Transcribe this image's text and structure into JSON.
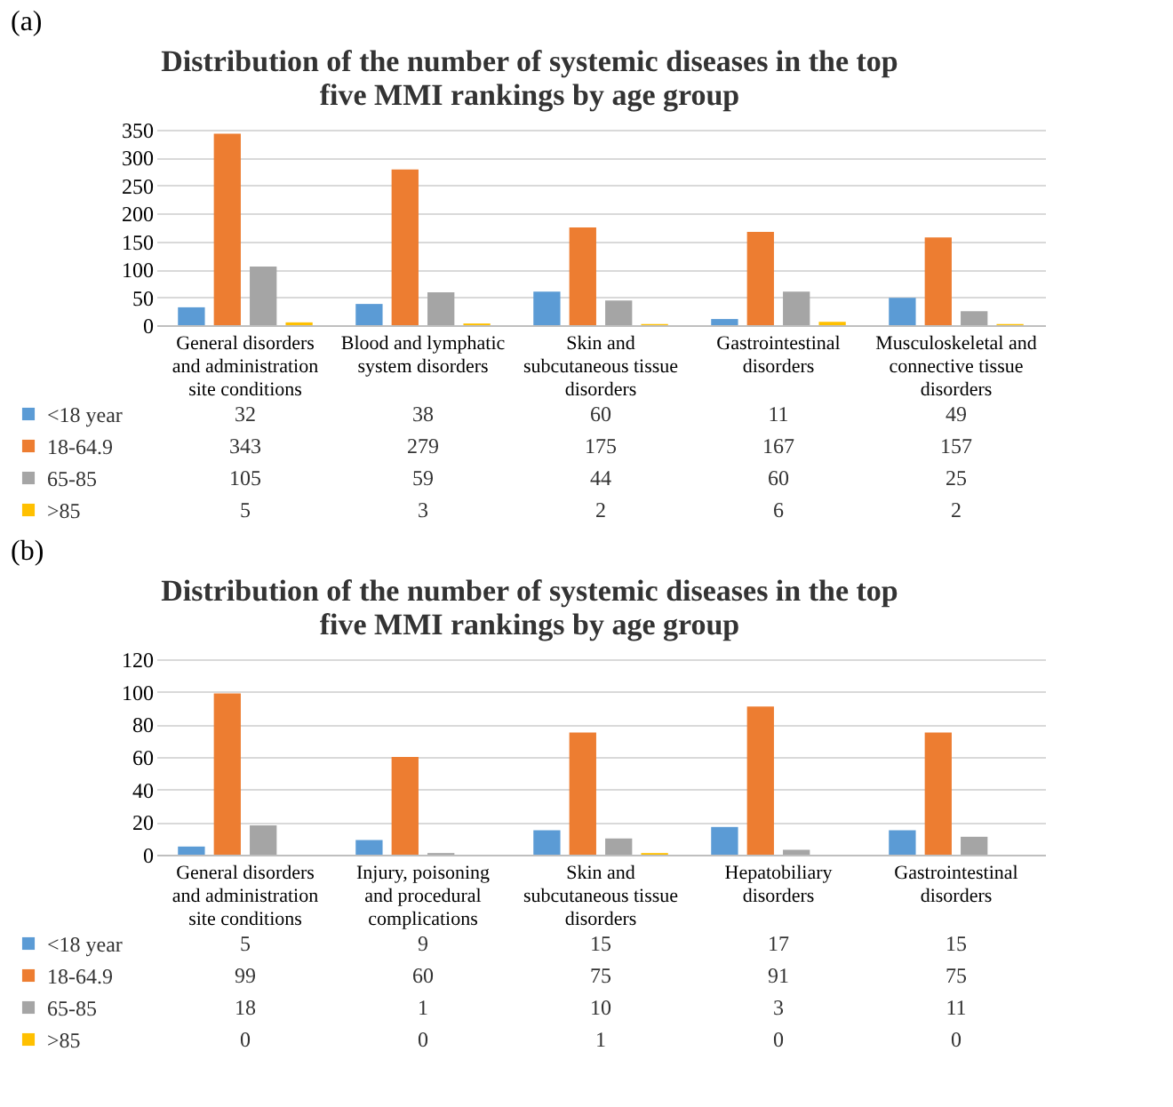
{
  "chart_data": [
    {
      "type": "bar",
      "title": "Distribution of the number of systemic diseases in the top five MMI rankings by age group",
      "annotations": [
        "(a)"
      ],
      "categories": [
        "General disorders and administration site conditions",
        "Blood and lymphatic system disorders",
        "Skin and subcutaneous tissue disorders",
        "Gastrointestinal disorders",
        "Musculoskeletal and connective tissue disorders"
      ],
      "series": [
        {
          "name": "<18 year",
          "color": "#5b9bd5",
          "values": [
            32,
            38,
            60,
            11,
            49
          ]
        },
        {
          "name": "18-64.9",
          "color": "#ed7d31",
          "values": [
            343,
            279,
            175,
            167,
            157
          ]
        },
        {
          "name": "65-85",
          "color": "#a5a5a5",
          "values": [
            105,
            59,
            44,
            60,
            25
          ]
        },
        {
          "name": ">85",
          "color": "#ffc000",
          "values": [
            5,
            3,
            2,
            6,
            2
          ]
        }
      ],
      "ylim": [
        0,
        350
      ],
      "yticks": [
        0,
        50,
        100,
        150,
        200,
        250,
        300,
        350
      ],
      "grid": "y",
      "legend": "bottom left",
      "data_labels": true
    },
    {
      "type": "bar",
      "title": "Distribution of the number of systemic diseases in the top five MMI rankings by age group",
      "annotations": [
        "(b)"
      ],
      "categories": [
        "General disorders and administration site conditions",
        "Injury, poisoning and procedural complications",
        "Skin and subcutaneous tissue disorders",
        "Hepatobiliary disorders",
        "Gastrointestinal disorders"
      ],
      "series": [
        {
          "name": "<18 year",
          "color": "#5b9bd5",
          "values": [
            5,
            9,
            15,
            17,
            15
          ]
        },
        {
          "name": "18-64.9",
          "color": "#ed7d31",
          "values": [
            99,
            60,
            75,
            91,
            75
          ]
        },
        {
          "name": "65-85",
          "color": "#a5a5a5",
          "values": [
            18,
            1,
            10,
            3,
            11
          ]
        },
        {
          "name": ">85",
          "color": "#ffc000",
          "values": [
            0,
            0,
            1,
            0,
            0
          ]
        }
      ],
      "ylim": [
        0,
        120
      ],
      "yticks": [
        0,
        20,
        40,
        60,
        80,
        100,
        120
      ],
      "grid": "y",
      "legend": "bottom left",
      "data_labels": true
    }
  ]
}
